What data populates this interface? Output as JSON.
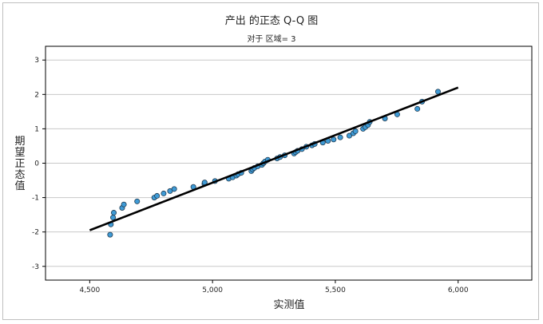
{
  "chart_data": {
    "type": "scatter",
    "title": "产出 的正态 Q-Q 图",
    "subtitle": "对于 区域= 3",
    "xlabel": "实测值",
    "ylabel": "期望正态值",
    "x_ticks": [
      4500,
      5000,
      5500,
      6000
    ],
    "x_tick_labels": [
      "4,500",
      "5,000",
      "5,500",
      "6,000"
    ],
    "y_ticks": [
      -3,
      -2,
      -1,
      0,
      1,
      2,
      3
    ],
    "y_tick_labels": [
      "-3",
      "-2",
      "-1",
      "0",
      "1",
      "2",
      "3"
    ],
    "xlim": [
      4320,
      6300
    ],
    "ylim": [
      -3.4,
      3.4
    ],
    "grid": "horizontal",
    "reference_line": {
      "x": [
        4500,
        6000
      ],
      "y": [
        -1.95,
        2.2
      ]
    },
    "point_color": "#3f9bd6",
    "line_color": "#000000",
    "points": [
      [
        4583,
        -2.08
      ],
      [
        4586,
        -1.78
      ],
      [
        4595,
        -1.58
      ],
      [
        4598,
        -1.44
      ],
      [
        4632,
        -1.3
      ],
      [
        4639,
        -1.2
      ],
      [
        4693,
        -1.11
      ],
      [
        4763,
        -1.0
      ],
      [
        4774,
        -0.95
      ],
      [
        4801,
        -0.88
      ],
      [
        4827,
        -0.81
      ],
      [
        4844,
        -0.75
      ],
      [
        4922,
        -0.69
      ],
      [
        4967,
        -0.6
      ],
      [
        4968,
        -0.56
      ],
      [
        5010,
        -0.52
      ],
      [
        5066,
        -0.45
      ],
      [
        5082,
        -0.41
      ],
      [
        5097,
        -0.36
      ],
      [
        5104,
        -0.32
      ],
      [
        5117,
        -0.28
      ],
      [
        5158,
        -0.23
      ],
      [
        5163,
        -0.18
      ],
      [
        5170,
        -0.14
      ],
      [
        5184,
        -0.09
      ],
      [
        5201,
        -0.05
      ],
      [
        5207,
        0.0
      ],
      [
        5214,
        0.05
      ],
      [
        5225,
        0.1
      ],
      [
        5263,
        0.14
      ],
      [
        5275,
        0.18
      ],
      [
        5294,
        0.23
      ],
      [
        5332,
        0.28
      ],
      [
        5338,
        0.32
      ],
      [
        5346,
        0.36
      ],
      [
        5364,
        0.41
      ],
      [
        5382,
        0.48
      ],
      [
        5405,
        0.52
      ],
      [
        5416,
        0.56
      ],
      [
        5449,
        0.6
      ],
      [
        5470,
        0.65
      ],
      [
        5493,
        0.69
      ],
      [
        5520,
        0.75
      ],
      [
        5557,
        0.8
      ],
      [
        5573,
        0.87
      ],
      [
        5582,
        0.93
      ],
      [
        5613,
        1.0
      ],
      [
        5622,
        1.05
      ],
      [
        5633,
        1.11
      ],
      [
        5640,
        1.2
      ],
      [
        5702,
        1.3
      ],
      [
        5752,
        1.42
      ],
      [
        5834,
        1.58
      ],
      [
        5853,
        1.79
      ],
      [
        5918,
        2.08
      ]
    ]
  }
}
